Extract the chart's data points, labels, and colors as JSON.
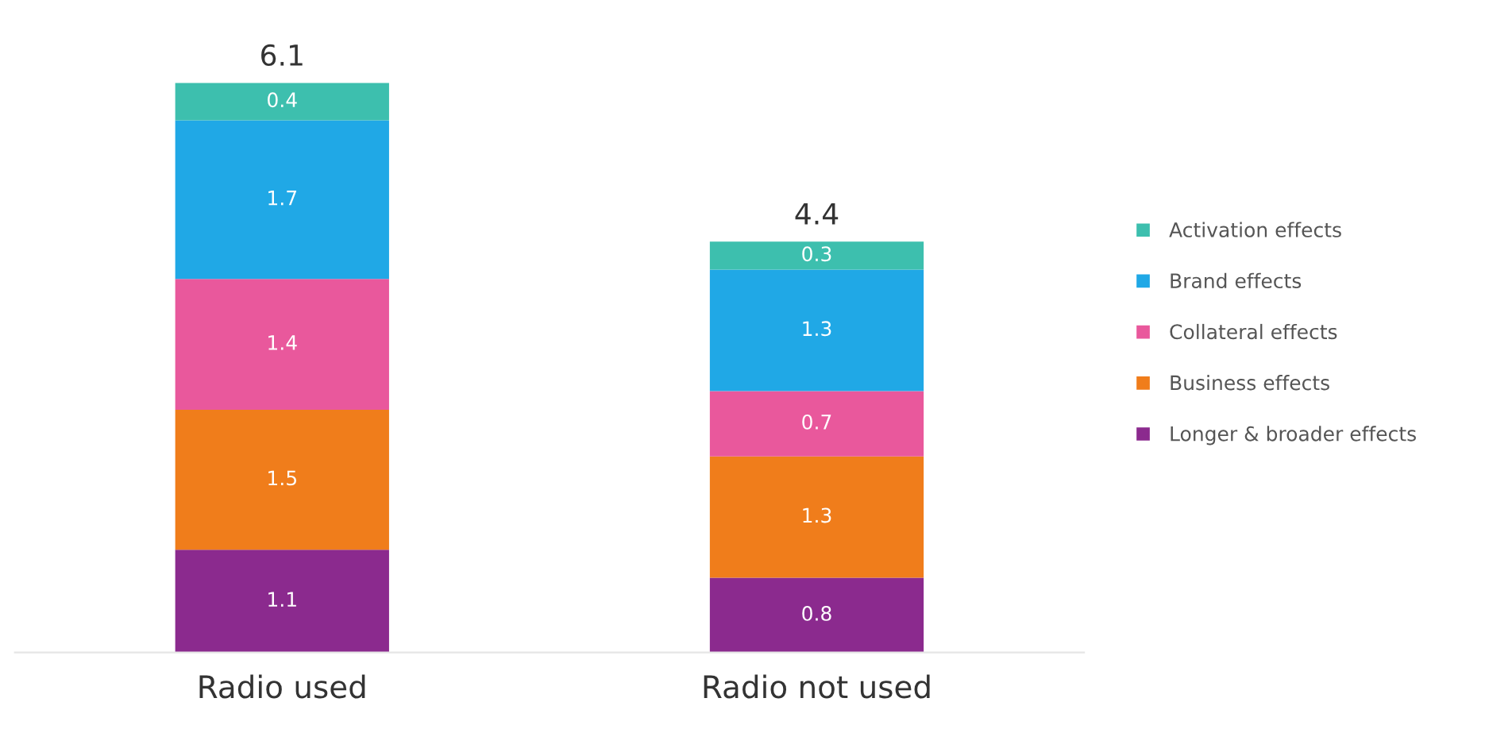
{
  "chart_data": {
    "type": "bar",
    "stacked": true,
    "categories": [
      "Radio used",
      "Radio not used"
    ],
    "series": [
      {
        "name": "Longer & broader effects",
        "color": "#8b2a8e",
        "values": [
          1.1,
          0.8
        ]
      },
      {
        "name": "Business effects",
        "color": "#f07d1b",
        "values": [
          1.5,
          1.3
        ]
      },
      {
        "name": "Collateral effects",
        "color": "#e9589c",
        "values": [
          1.4,
          0.7
        ]
      },
      {
        "name": "Brand effects",
        "color": "#20a8e6",
        "values": [
          1.7,
          1.3
        ]
      },
      {
        "name": "Activation effects",
        "color": "#3dbfae",
        "values": [
          0.4,
          0.3
        ]
      }
    ],
    "data_labels": true,
    "totals": [
      "6.1",
      "4.4"
    ],
    "legend": "right",
    "marker": "square",
    "grid": false
  }
}
